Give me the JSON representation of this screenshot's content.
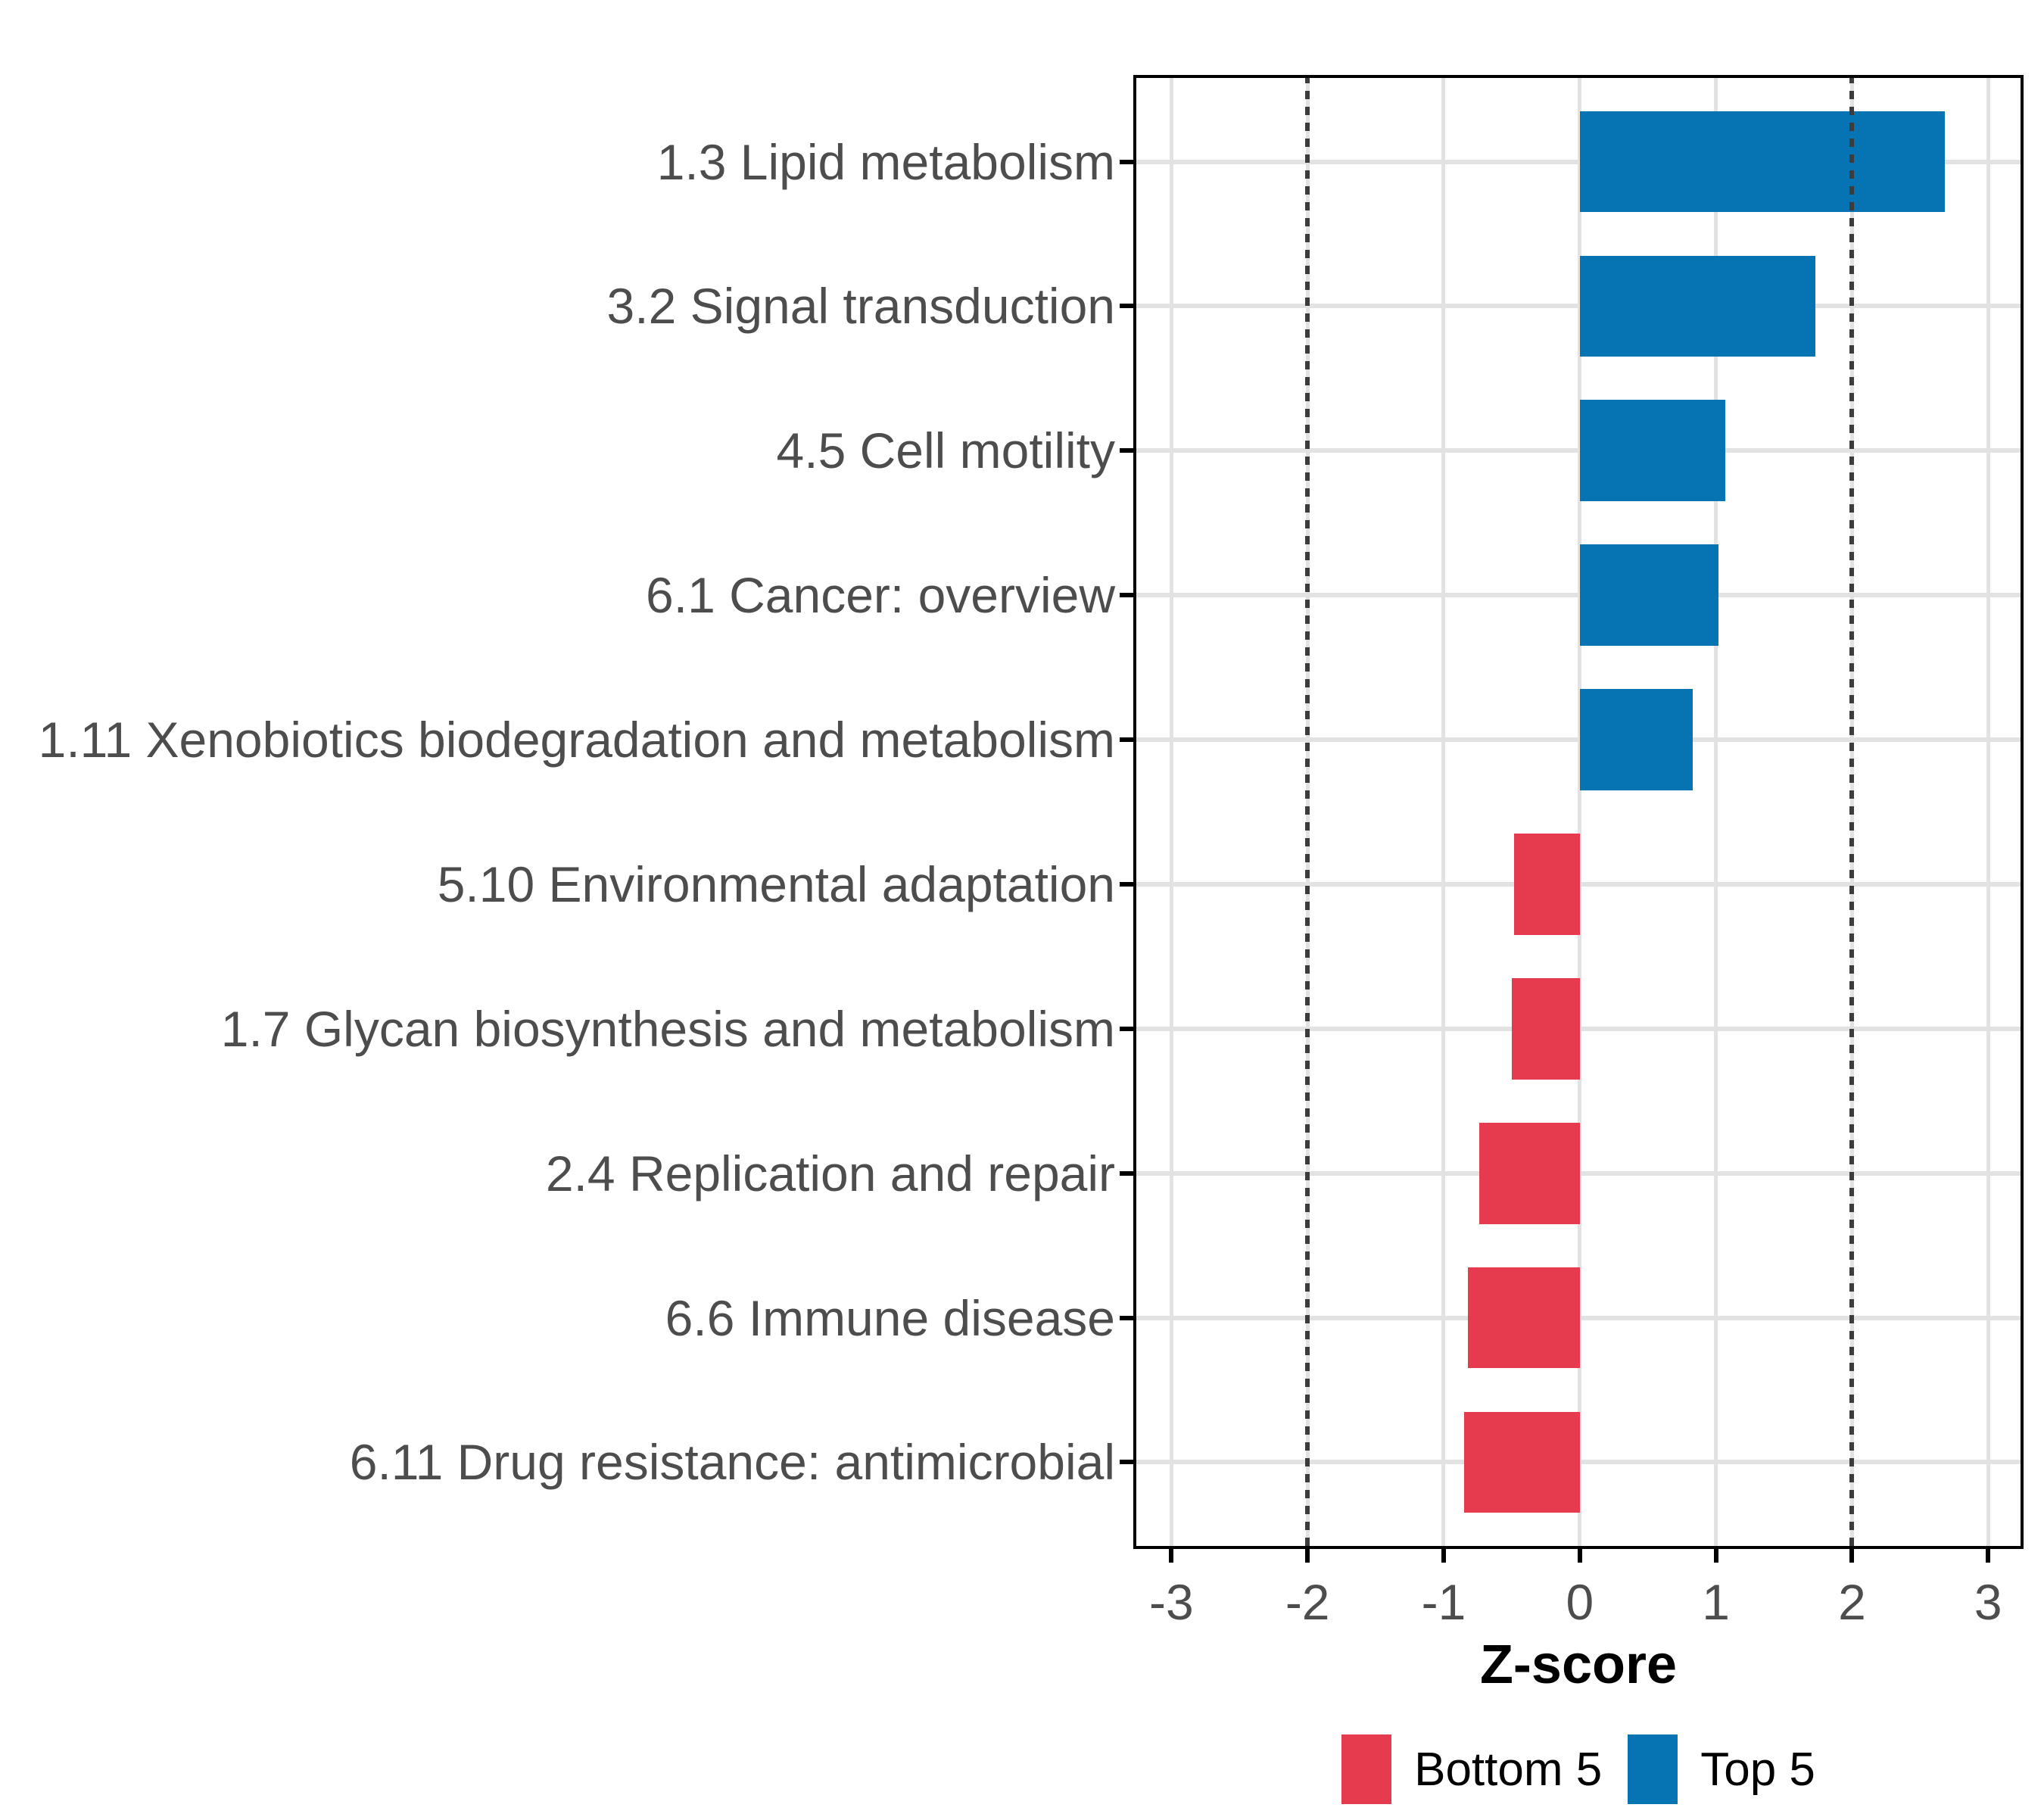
{
  "chart_data": {
    "type": "bar",
    "orientation": "horizontal",
    "title": "",
    "xlabel": "Z-score",
    "categories": [
      "1.3 Lipid metabolism",
      "3.2 Signal transduction",
      "4.5 Cell motility",
      "6.1 Cancer: overview",
      "1.11 Xenobiotics biodegradation and metabolism",
      "5.10 Environmental adaptation",
      "1.7 Glycan biosynthesis and metabolism",
      "2.4 Replication and repair",
      "6.6 Immune disease",
      "6.11 Drug resistance: antimicrobial"
    ],
    "values": [
      2.68,
      1.73,
      1.07,
      1.02,
      0.83,
      -0.48,
      -0.5,
      -0.74,
      -0.82,
      -0.85
    ],
    "groups": [
      "Top 5",
      "Top 5",
      "Top 5",
      "Top 5",
      "Top 5",
      "Bottom 5",
      "Bottom 5",
      "Bottom 5",
      "Bottom 5",
      "Bottom 5"
    ],
    "group_colors": {
      "Top 5": "#0673B2",
      "Bottom 5": "#E63B4E"
    },
    "x_ticks": [
      -3,
      -2,
      -1,
      0,
      1,
      2,
      3
    ],
    "x_tick_labels": [
      "-3",
      "-2",
      "-1",
      "0",
      "1",
      "2",
      "3"
    ],
    "xlim": [
      -3.28,
      3.26
    ],
    "bar_width_fraction": 0.7,
    "reference_lines": {
      "values": [
        -2,
        2
      ],
      "style": "dotted",
      "color": "#3C3C3C"
    },
    "grid": {
      "major": true,
      "minor": false,
      "color": "#E2E2E2"
    },
    "legend": {
      "position": "bottom",
      "items": [
        {
          "label": "Bottom 5",
          "color": "#E63B4E"
        },
        {
          "label": "Top 5",
          "color": "#0673B2"
        }
      ]
    }
  },
  "styles": {
    "background": "#FFFFFF",
    "panel_border_color": "#000000",
    "axis_text_color": "#4D4D4D",
    "axis_title_color": "#000000",
    "gridline_color": "#E2E2E2",
    "reference_line_color": "#3C3C3C"
  }
}
